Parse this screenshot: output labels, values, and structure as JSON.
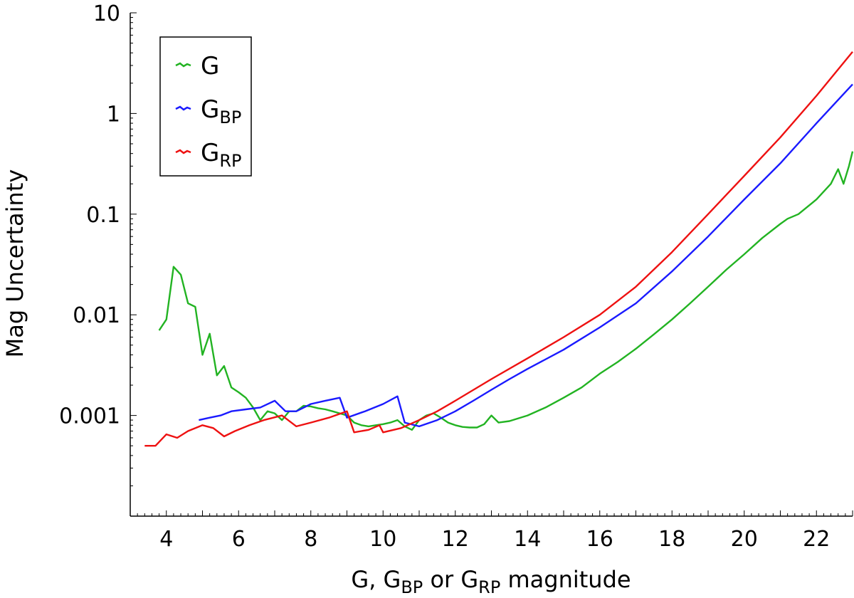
{
  "chart_data": {
    "type": "line",
    "title": "",
    "xlabel": {
      "main": "G, G",
      "sub1": "BP",
      "mid": " or G",
      "sub2": "RP",
      "tail": " magnitude"
    },
    "ylabel": "Mag Uncertainty",
    "xlim": [
      3,
      23
    ],
    "ylim": [
      0.0001,
      10
    ],
    "yscale": "log",
    "x_ticks": [
      4,
      6,
      8,
      10,
      12,
      14,
      16,
      18,
      20,
      22
    ],
    "x_tick_labels": [
      "4",
      "6",
      "8",
      "10",
      "12",
      "14",
      "16",
      "18",
      "20",
      "22"
    ],
    "y_ticks": [
      0.001,
      0.01,
      0.1,
      1,
      10
    ],
    "y_tick_labels": [
      "0.001",
      "0.01",
      "0.1",
      "1",
      "10"
    ],
    "legend_position": "top-left",
    "legend": [
      {
        "base": "G",
        "sub": ""
      },
      {
        "base": "G",
        "sub": "BP"
      },
      {
        "base": "G",
        "sub": "RP"
      }
    ],
    "series": [
      {
        "name": "G",
        "color": "#22b322",
        "points": [
          [
            3.8,
            0.007
          ],
          [
            4.0,
            0.009
          ],
          [
            4.2,
            0.03
          ],
          [
            4.4,
            0.025
          ],
          [
            4.6,
            0.013
          ],
          [
            4.8,
            0.012
          ],
          [
            5.0,
            0.004
          ],
          [
            5.2,
            0.0065
          ],
          [
            5.4,
            0.0025
          ],
          [
            5.6,
            0.0031
          ],
          [
            5.8,
            0.0019
          ],
          [
            6.0,
            0.0017
          ],
          [
            6.2,
            0.0015
          ],
          [
            6.4,
            0.0012
          ],
          [
            6.6,
            0.0009
          ],
          [
            6.8,
            0.0011
          ],
          [
            7.0,
            0.00105
          ],
          [
            7.2,
            0.0009
          ],
          [
            7.4,
            0.0011
          ],
          [
            7.6,
            0.0011
          ],
          [
            7.8,
            0.00125
          ],
          [
            8.0,
            0.00123
          ],
          [
            8.2,
            0.00118
          ],
          [
            8.4,
            0.00115
          ],
          [
            8.6,
            0.0011
          ],
          [
            8.8,
            0.00105
          ],
          [
            9.0,
            0.001
          ],
          [
            9.2,
            0.00085
          ],
          [
            9.4,
            0.0008
          ],
          [
            9.6,
            0.00078
          ],
          [
            9.8,
            0.0008
          ],
          [
            10.0,
            0.00082
          ],
          [
            10.2,
            0.00085
          ],
          [
            10.4,
            0.0009
          ],
          [
            10.6,
            0.00078
          ],
          [
            10.8,
            0.00072
          ],
          [
            11.0,
            0.0009
          ],
          [
            11.2,
            0.001
          ],
          [
            11.4,
            0.00105
          ],
          [
            11.6,
            0.00095
          ],
          [
            11.8,
            0.00085
          ],
          [
            12.0,
            0.0008
          ],
          [
            12.2,
            0.00077
          ],
          [
            12.4,
            0.00076
          ],
          [
            12.6,
            0.00076
          ],
          [
            12.8,
            0.00082
          ],
          [
            13.0,
            0.001
          ],
          [
            13.2,
            0.00085
          ],
          [
            13.5,
            0.00088
          ],
          [
            14.0,
            0.001
          ],
          [
            14.5,
            0.0012
          ],
          [
            15.0,
            0.0015
          ],
          [
            15.5,
            0.0019
          ],
          [
            16.0,
            0.0026
          ],
          [
            16.5,
            0.0034
          ],
          [
            17.0,
            0.0046
          ],
          [
            17.5,
            0.0064
          ],
          [
            18.0,
            0.009
          ],
          [
            18.5,
            0.013
          ],
          [
            19.0,
            0.019
          ],
          [
            19.5,
            0.028
          ],
          [
            20.0,
            0.04
          ],
          [
            20.5,
            0.058
          ],
          [
            21.0,
            0.08
          ],
          [
            21.2,
            0.09
          ],
          [
            21.5,
            0.1
          ],
          [
            22.0,
            0.14
          ],
          [
            22.4,
            0.2
          ],
          [
            22.6,
            0.28
          ],
          [
            22.75,
            0.2
          ],
          [
            22.9,
            0.3
          ],
          [
            23.0,
            0.42
          ]
        ]
      },
      {
        "name": "G_BP",
        "color": "#1a1aff",
        "points": [
          [
            4.9,
            0.0009
          ],
          [
            5.2,
            0.00095
          ],
          [
            5.5,
            0.001
          ],
          [
            5.8,
            0.0011
          ],
          [
            6.2,
            0.00115
          ],
          [
            6.6,
            0.0012
          ],
          [
            7.0,
            0.0014
          ],
          [
            7.3,
            0.0011
          ],
          [
            7.6,
            0.0011
          ],
          [
            8.0,
            0.0013
          ],
          [
            8.4,
            0.0014
          ],
          [
            8.8,
            0.0015
          ],
          [
            9.0,
            0.00095
          ],
          [
            9.5,
            0.0011
          ],
          [
            10.0,
            0.0013
          ],
          [
            10.4,
            0.00155
          ],
          [
            10.6,
            0.00085
          ],
          [
            11.0,
            0.00078
          ],
          [
            11.5,
            0.0009
          ],
          [
            12.0,
            0.0011
          ],
          [
            12.5,
            0.0014
          ],
          [
            13.0,
            0.0018
          ],
          [
            13.5,
            0.0023
          ],
          [
            14.0,
            0.0029
          ],
          [
            15.0,
            0.0045
          ],
          [
            16.0,
            0.0075
          ],
          [
            17.0,
            0.013
          ],
          [
            18.0,
            0.027
          ],
          [
            19.0,
            0.06
          ],
          [
            20.0,
            0.14
          ],
          [
            21.0,
            0.32
          ],
          [
            22.0,
            0.8
          ],
          [
            23.0,
            1.95
          ]
        ]
      },
      {
        "name": "G_RP",
        "color": "#ee1111",
        "points": [
          [
            3.4,
            0.0005
          ],
          [
            3.7,
            0.0005
          ],
          [
            4.0,
            0.00065
          ],
          [
            4.3,
            0.0006
          ],
          [
            4.6,
            0.0007
          ],
          [
            5.0,
            0.0008
          ],
          [
            5.3,
            0.00075
          ],
          [
            5.6,
            0.00062
          ],
          [
            5.9,
            0.0007
          ],
          [
            6.3,
            0.0008
          ],
          [
            6.7,
            0.0009
          ],
          [
            7.2,
            0.001
          ],
          [
            7.6,
            0.00078
          ],
          [
            8.0,
            0.00085
          ],
          [
            8.5,
            0.00095
          ],
          [
            9.0,
            0.0011
          ],
          [
            9.2,
            0.00068
          ],
          [
            9.6,
            0.00072
          ],
          [
            9.9,
            0.0008
          ],
          [
            10.0,
            0.00068
          ],
          [
            10.5,
            0.00075
          ],
          [
            11.0,
            0.0009
          ],
          [
            11.5,
            0.0011
          ],
          [
            12.0,
            0.0014
          ],
          [
            13.0,
            0.0023
          ],
          [
            14.0,
            0.0037
          ],
          [
            15.0,
            0.006
          ],
          [
            16.0,
            0.01
          ],
          [
            17.0,
            0.019
          ],
          [
            18.0,
            0.042
          ],
          [
            19.0,
            0.1
          ],
          [
            20.0,
            0.24
          ],
          [
            21.0,
            0.58
          ],
          [
            22.0,
            1.5
          ],
          [
            23.0,
            4.1
          ]
        ]
      }
    ]
  }
}
